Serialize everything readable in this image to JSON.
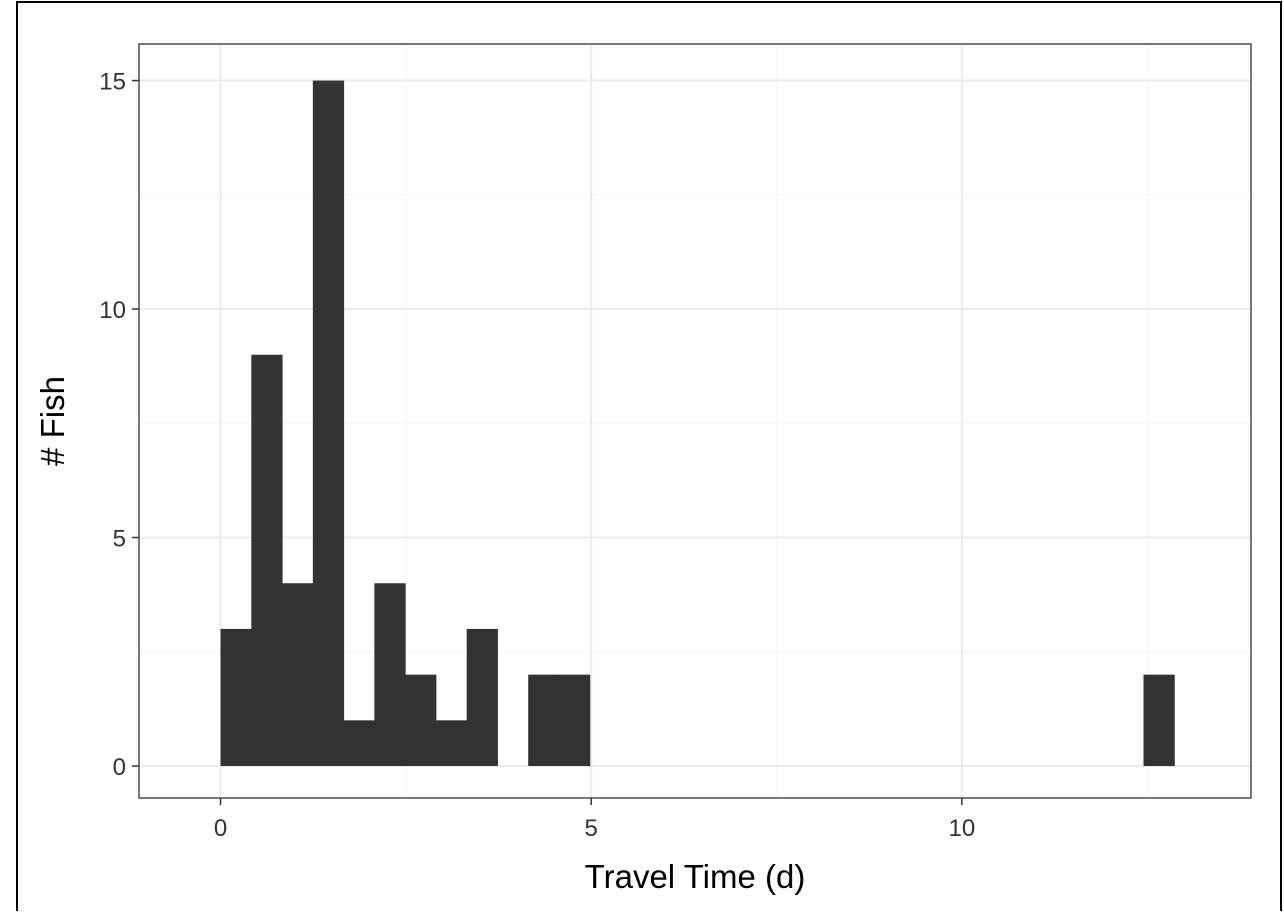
{
  "chart_data": {
    "type": "bar",
    "subtype": "histogram",
    "xlabel": "Travel Time (d)",
    "ylabel": "# Fish",
    "xlim": [
      -1.1,
      13.9
    ],
    "ylim": [
      -0.7,
      15.8
    ],
    "x_ticks": [
      0,
      5,
      10
    ],
    "y_ticks": [
      0,
      5,
      10,
      15
    ],
    "grid": true,
    "bin_width": 0.415,
    "bins": [
      {
        "x0": 0.0,
        "x1": 0.415,
        "count": 3
      },
      {
        "x0": 0.415,
        "x1": 0.83,
        "count": 9
      },
      {
        "x0": 0.83,
        "x1": 1.245,
        "count": 4
      },
      {
        "x0": 1.245,
        "x1": 1.66,
        "count": 15
      },
      {
        "x0": 1.66,
        "x1": 2.075,
        "count": 1
      },
      {
        "x0": 2.075,
        "x1": 2.49,
        "count": 4
      },
      {
        "x0": 2.49,
        "x1": 2.905,
        "count": 2
      },
      {
        "x0": 2.905,
        "x1": 3.32,
        "count": 1
      },
      {
        "x0": 3.32,
        "x1": 3.735,
        "count": 3
      },
      {
        "x0": 4.15,
        "x1": 4.565,
        "count": 2
      },
      {
        "x0": 4.565,
        "x1": 4.98,
        "count": 2
      },
      {
        "x0": 12.45,
        "x1": 12.865,
        "count": 2
      }
    ],
    "colors": {
      "bar": "#333333",
      "panel_border": "#4d4d4d",
      "grid_major": "#ebebeb",
      "grid_minor": "#f5f5f5"
    }
  }
}
